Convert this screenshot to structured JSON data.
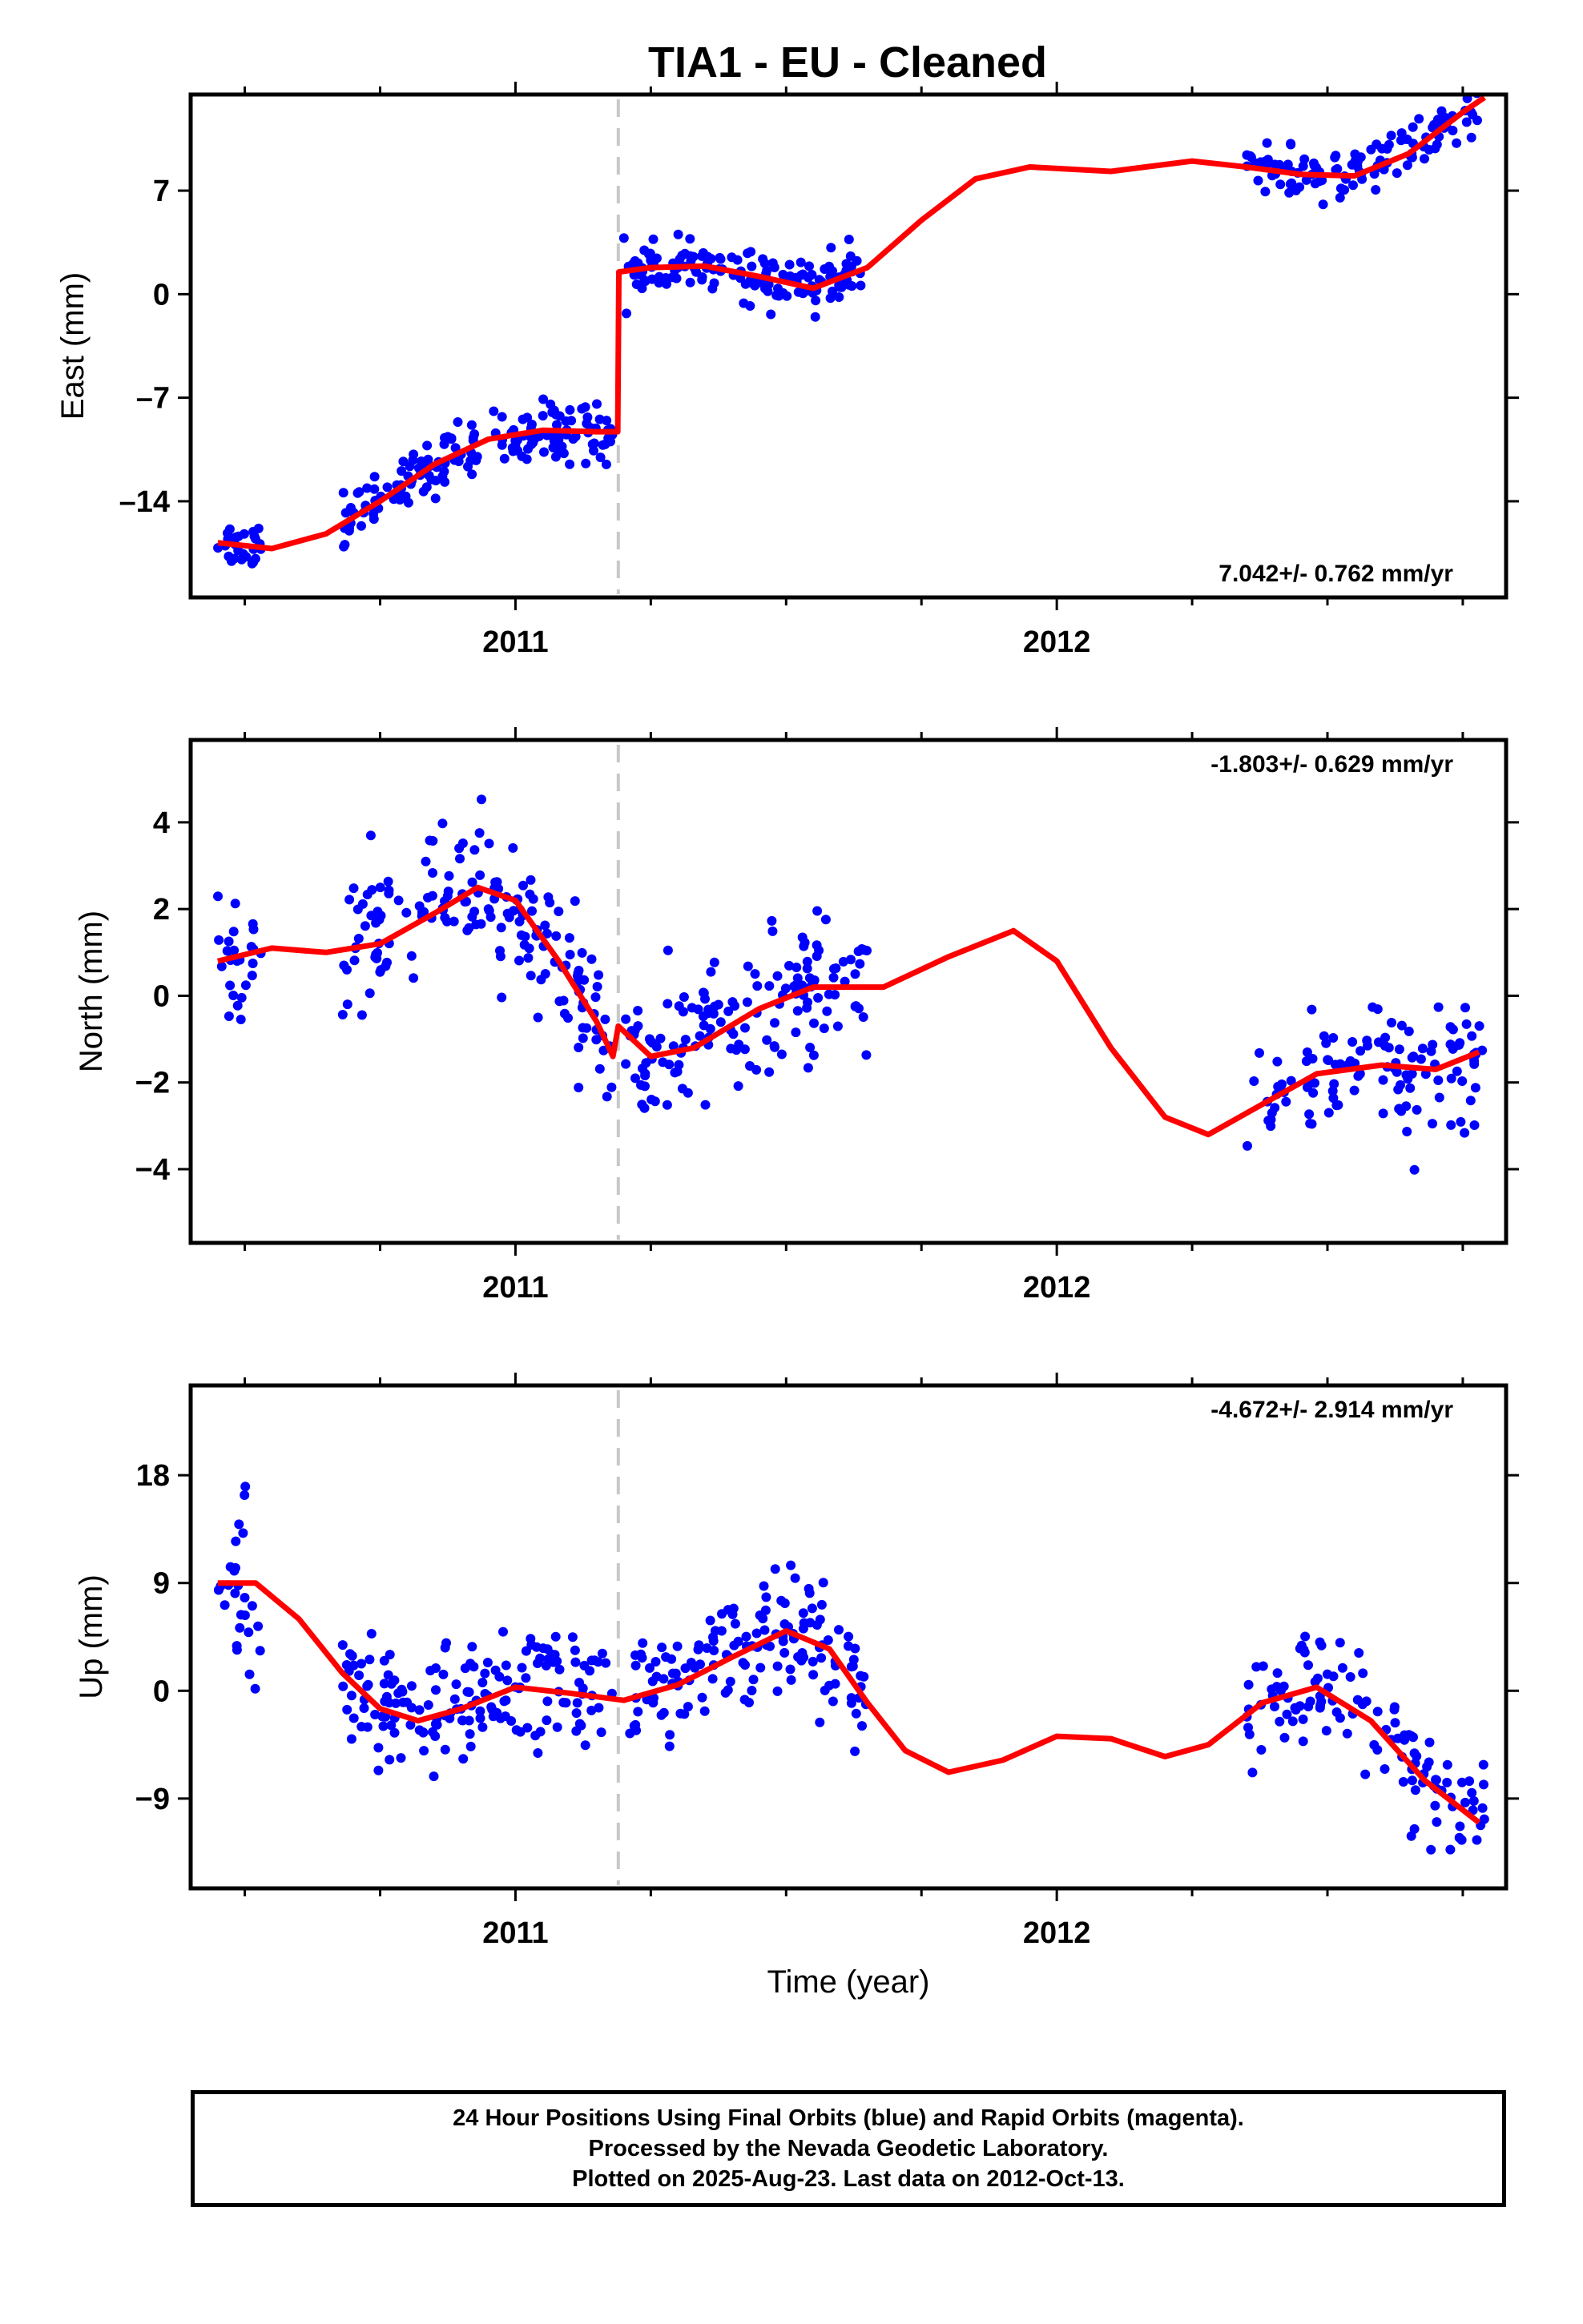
{
  "title": "TIA1  - EU - Cleaned",
  "colors": {
    "points": "#0000ff",
    "model": "#ff0000",
    "break_line": "#c8c8c8",
    "axes": "#000000"
  },
  "chart_data": [
    {
      "type": "scatter",
      "component": "east",
      "ylabel": "East (mm)",
      "rate_label": "7.042+/- 0.762 mm/yr",
      "rate_position": "bottom-right",
      "xlim": [
        2010.4,
        2012.83
      ],
      "ylim": [
        -20.5,
        13.5
      ],
      "yticks": [
        -14,
        -7,
        0,
        7
      ],
      "ytick_labels": [
        "–14",
        "–7",
        "0",
        "7"
      ],
      "xticks": [
        2011,
        2012
      ],
      "xtick_labels": [
        "2011",
        "2012"
      ],
      "break_epoch": 2011.19,
      "model": [
        [
          2010.45,
          -16.8
        ],
        [
          2010.55,
          -17.2
        ],
        [
          2010.65,
          -16.2
        ],
        [
          2010.75,
          -14.0
        ],
        [
          2010.85,
          -11.5
        ],
        [
          2010.95,
          -9.8
        ],
        [
          2011.05,
          -9.2
        ],
        [
          2011.15,
          -9.3
        ],
        [
          2011.189,
          -9.3
        ],
        [
          2011.191,
          1.5
        ],
        [
          2011.25,
          1.8
        ],
        [
          2011.35,
          1.9
        ],
        [
          2011.45,
          1.2
        ],
        [
          2011.55,
          0.4
        ],
        [
          2011.65,
          1.8
        ],
        [
          2011.75,
          5.0
        ],
        [
          2011.85,
          7.8
        ],
        [
          2011.95,
          8.6
        ],
        [
          2012.1,
          8.3
        ],
        [
          2012.25,
          9.0
        ],
        [
          2012.35,
          8.6
        ],
        [
          2012.45,
          8.1
        ],
        [
          2012.55,
          8.0
        ],
        [
          2012.65,
          9.5
        ],
        [
          2012.75,
          12.3
        ],
        [
          2012.79,
          13.3
        ]
      ],
      "segments": [
        {
          "x": [
            2010.45,
            2010.53
          ],
          "center": -16.9,
          "spread": 1.1,
          "n": 26
        },
        {
          "x": [
            2010.68,
            2011.18
          ],
          "center": "model",
          "spread": 1.3,
          "n": 170
        },
        {
          "x": [
            2011.2,
            2011.65
          ],
          "center": "model",
          "spread": 1.1,
          "n": 150
        },
        {
          "x": [
            2012.35,
            2012.79
          ],
          "center": "model",
          "spread": 1.1,
          "n": 120
        }
      ]
    },
    {
      "type": "scatter",
      "component": "north",
      "ylabel": "North (mm)",
      "rate_label": "-1.803+/- 0.629 mm/yr",
      "rate_position": "top-right",
      "xlim": [
        2010.4,
        2012.83
      ],
      "ylim": [
        -5.7,
        5.9
      ],
      "yticks": [
        -4,
        -2,
        0,
        2,
        4
      ],
      "ytick_labels": [
        "−4",
        "−2",
        "0",
        "2",
        "4"
      ],
      "xticks": [
        2011,
        2012
      ],
      "xtick_labels": [
        "2011",
        "2012"
      ],
      "break_epoch": 2011.19,
      "model": [
        [
          2010.45,
          0.8
        ],
        [
          2010.55,
          1.1
        ],
        [
          2010.65,
          1.0
        ],
        [
          2010.75,
          1.2
        ],
        [
          2010.85,
          1.9
        ],
        [
          2010.93,
          2.5
        ],
        [
          2011.0,
          2.2
        ],
        [
          2011.08,
          0.8
        ],
        [
          2011.15,
          -0.6
        ],
        [
          2011.18,
          -1.4
        ],
        [
          2011.19,
          -0.7
        ],
        [
          2011.25,
          -1.4
        ],
        [
          2011.33,
          -1.2
        ],
        [
          2011.45,
          -0.3
        ],
        [
          2011.55,
          0.2
        ],
        [
          2011.68,
          0.2
        ],
        [
          2011.8,
          0.9
        ],
        [
          2011.92,
          1.5
        ],
        [
          2012.0,
          0.8
        ],
        [
          2012.1,
          -1.2
        ],
        [
          2012.2,
          -2.8
        ],
        [
          2012.28,
          -3.2
        ],
        [
          2012.38,
          -2.5
        ],
        [
          2012.48,
          -1.8
        ],
        [
          2012.6,
          -1.6
        ],
        [
          2012.7,
          -1.7
        ],
        [
          2012.78,
          -1.3
        ]
      ],
      "segments": [
        {
          "x": [
            2010.45,
            2010.53
          ],
          "center": "model",
          "spread": 1.6,
          "n": 26
        },
        {
          "x": [
            2010.68,
            2011.18
          ],
          "center": "model",
          "spread": 1.1,
          "n": 170
        },
        {
          "x": [
            2011.2,
            2011.65
          ],
          "center": "model",
          "spread": 1.0,
          "n": 150
        },
        {
          "x": [
            2012.35,
            2012.79
          ],
          "center": "model",
          "spread": 1.1,
          "n": 120
        }
      ]
    },
    {
      "type": "scatter",
      "component": "up",
      "ylabel": "Up (mm)",
      "rate_label": "-4.672+/- 2.914 mm/yr",
      "rate_position": "top-right",
      "xlim": [
        2010.4,
        2012.83
      ],
      "ylim": [
        -16.5,
        25.5
      ],
      "yticks": [
        -9,
        0,
        9,
        18
      ],
      "ytick_labels": [
        "−9",
        "0",
        "9",
        "18"
      ],
      "xticks": [
        2011,
        2012
      ],
      "xtick_labels": [
        "2011",
        "2012"
      ],
      "xlabel": "Time (year)",
      "break_epoch": 2011.19,
      "model": [
        [
          2010.45,
          9.0
        ],
        [
          2010.52,
          9.0
        ],
        [
          2010.6,
          6.0
        ],
        [
          2010.68,
          1.5
        ],
        [
          2010.75,
          -1.5
        ],
        [
          2010.82,
          -2.5
        ],
        [
          2010.9,
          -1.5
        ],
        [
          2011.0,
          0.3
        ],
        [
          2011.1,
          -0.2
        ],
        [
          2011.2,
          -0.8
        ],
        [
          2011.3,
          0.5
        ],
        [
          2011.4,
          2.8
        ],
        [
          2011.5,
          5.0
        ],
        [
          2011.58,
          3.5
        ],
        [
          2011.65,
          -1.0
        ],
        [
          2011.72,
          -5.0
        ],
        [
          2011.8,
          -6.8
        ],
        [
          2011.9,
          -5.8
        ],
        [
          2012.0,
          -3.8
        ],
        [
          2012.1,
          -4.0
        ],
        [
          2012.2,
          -5.5
        ],
        [
          2012.28,
          -4.5
        ],
        [
          2012.38,
          -1.0
        ],
        [
          2012.48,
          0.3
        ],
        [
          2012.58,
          -2.5
        ],
        [
          2012.68,
          -7.5
        ],
        [
          2012.78,
          -11.0
        ]
      ],
      "segments": [
        {
          "x": [
            2010.45,
            2010.53
          ],
          "center": "model",
          "spread": 4.5,
          "n": 26
        },
        {
          "x": [
            2010.68,
            2011.18
          ],
          "center": "model",
          "spread": 3.5,
          "n": 170
        },
        {
          "x": [
            2011.2,
            2011.65
          ],
          "center": "model",
          "spread": 3.3,
          "n": 150
        },
        {
          "x": [
            2012.35,
            2012.79
          ],
          "center": "model",
          "spread": 3.0,
          "n": 120
        }
      ]
    }
  ],
  "footer": {
    "line1": "24 Hour Positions Using Final Orbits (blue) and Rapid Orbits (magenta).",
    "line2": "Processed by the Nevada Geodetic Laboratory.",
    "line3": "Plotted on 2025-Aug-23. Last data on 2012-Oct-13."
  }
}
